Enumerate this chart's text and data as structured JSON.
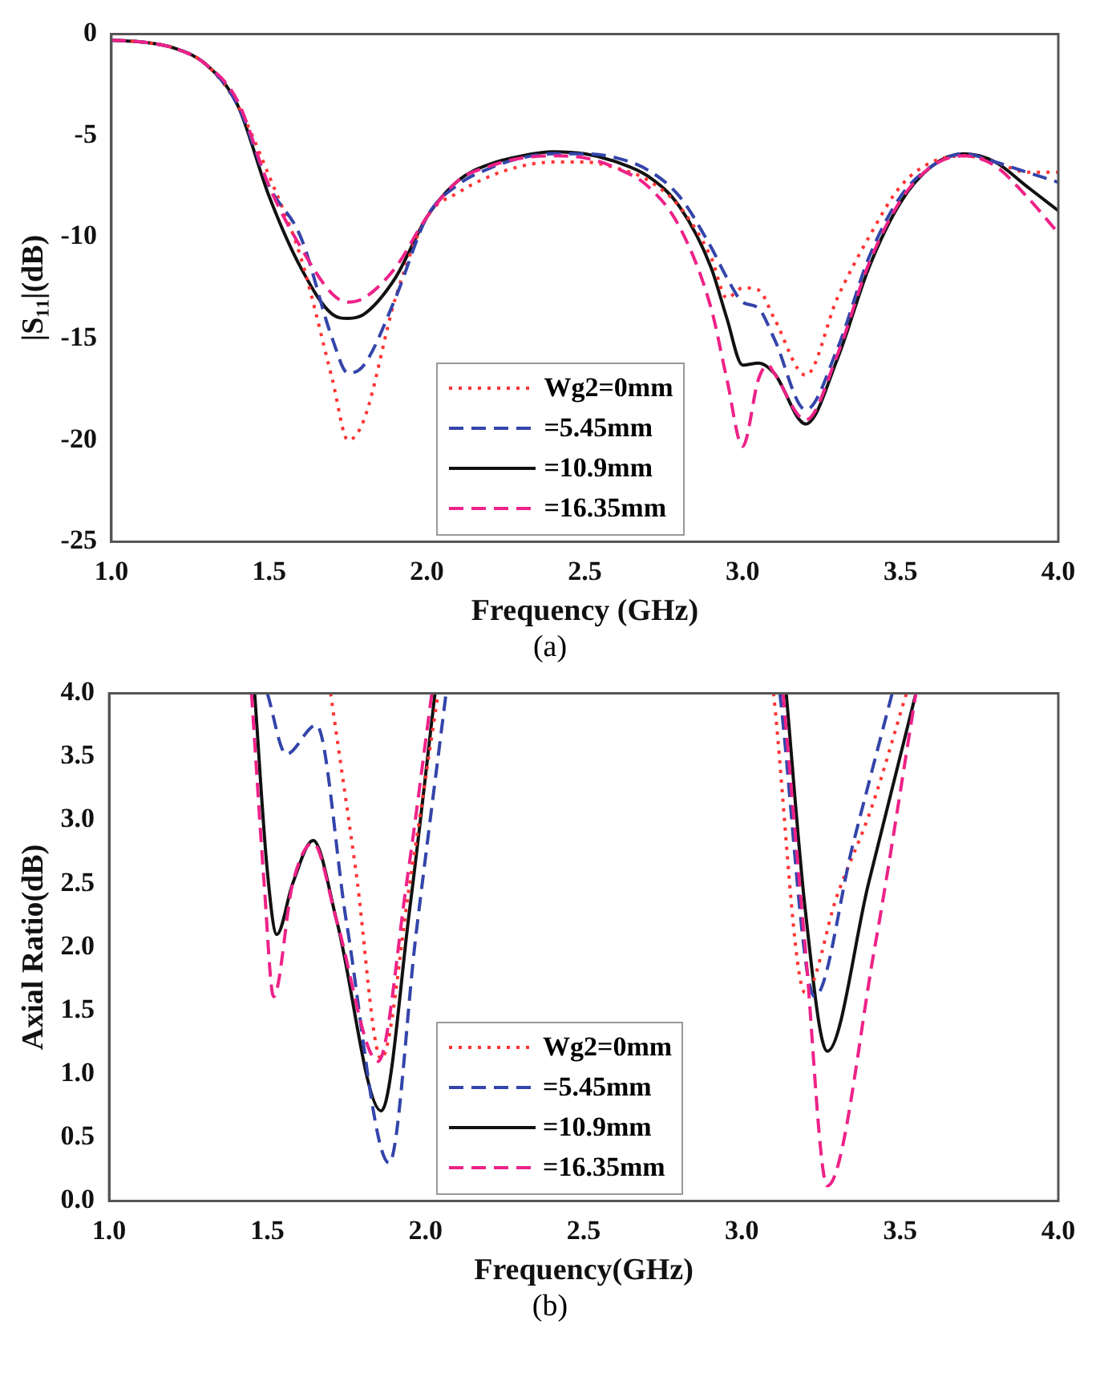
{
  "chart_data": [
    {
      "type": "line",
      "xlabel": "Frequency (GHz)",
      "ylabel": "|S₁₁|(dB)",
      "annotations": [
        "(a)"
      ],
      "legend": "bottom",
      "xlim": [
        1,
        4
      ],
      "xticks": [
        {
          "value": 1,
          "label": "1.0"
        },
        {
          "value": 1.5,
          "label": "1.5"
        },
        {
          "value": 2,
          "label": "2.0"
        },
        {
          "value": 2.5,
          "label": "2.5"
        },
        {
          "value": 3,
          "label": "3.0"
        },
        {
          "value": 3.5,
          "label": "3.5"
        },
        {
          "value": 4,
          "label": "4.0"
        }
      ],
      "ylim": [
        -25,
        0
      ],
      "yticks": [
        -25,
        -20,
        -15,
        -10,
        -5,
        0
      ],
      "series": [
        {
          "name": "Wg2=0mm",
          "color": "#ff3333",
          "line_style": "dotted",
          "x": [
            1.0,
            1.1,
            1.2,
            1.3,
            1.4,
            1.5,
            1.6,
            1.7,
            1.75,
            1.8,
            1.9,
            2.0,
            2.1,
            2.2,
            2.3,
            2.4,
            2.5,
            2.6,
            2.7,
            2.8,
            2.9,
            2.95,
            3.0,
            3.05,
            3.1,
            3.2,
            3.3,
            3.4,
            3.5,
            3.6,
            3.7,
            3.8,
            3.9,
            4.0
          ],
          "values": [
            -0.3,
            -0.4,
            -0.7,
            -1.5,
            -3.5,
            -7,
            -11,
            -17,
            -20,
            -19,
            -13,
            -9,
            -7.8,
            -7,
            -6.5,
            -6.3,
            -6.3,
            -6.6,
            -7.2,
            -8.5,
            -11,
            -13,
            -12.5,
            -12.6,
            -14,
            -16.8,
            -13,
            -10,
            -7.5,
            -6.3,
            -6,
            -6.3,
            -6.8,
            -6.8
          ]
        },
        {
          "name": "=5.45mm",
          "color": "#3344aa",
          "line_style": "dashed",
          "x": [
            1.0,
            1.1,
            1.2,
            1.3,
            1.4,
            1.5,
            1.6,
            1.7,
            1.75,
            1.8,
            1.9,
            2.0,
            2.1,
            2.2,
            2.3,
            2.4,
            2.5,
            2.6,
            2.7,
            2.8,
            2.9,
            2.95,
            3.0,
            3.05,
            3.1,
            3.2,
            3.3,
            3.4,
            3.5,
            3.6,
            3.7,
            3.8,
            3.9,
            4.0
          ],
          "values": [
            -0.3,
            -0.4,
            -0.7,
            -1.5,
            -3.5,
            -7.5,
            -10,
            -15,
            -16.7,
            -16.3,
            -13,
            -9,
            -7.4,
            -6.6,
            -6.1,
            -5.9,
            -5.9,
            -6.1,
            -6.7,
            -8,
            -10.5,
            -12,
            -13.2,
            -13.5,
            -15,
            -18.5,
            -15.5,
            -11,
            -8,
            -6.5,
            -5.9,
            -6.3,
            -6.8,
            -7.3
          ]
        },
        {
          "name": "=10.9mm",
          "color": "#111111",
          "line_style": "solid",
          "x": [
            1.0,
            1.1,
            1.2,
            1.3,
            1.4,
            1.5,
            1.6,
            1.7,
            1.75,
            1.8,
            1.9,
            2.0,
            2.1,
            2.2,
            2.3,
            2.4,
            2.5,
            2.6,
            2.7,
            2.8,
            2.9,
            2.95,
            3.0,
            3.05,
            3.1,
            3.2,
            3.3,
            3.4,
            3.5,
            3.6,
            3.7,
            3.8,
            3.9,
            4.0
          ],
          "values": [
            -0.3,
            -0.4,
            -0.7,
            -1.5,
            -3.5,
            -8,
            -11.5,
            -13.8,
            -14,
            -13.8,
            -12,
            -9,
            -7.2,
            -6.4,
            -6,
            -5.8,
            -5.9,
            -6.3,
            -7,
            -8.5,
            -11.5,
            -14,
            -16.3,
            -16.2,
            -16.7,
            -19.2,
            -16,
            -11.5,
            -8.3,
            -6.5,
            -5.9,
            -6.3,
            -7.5,
            -8.7
          ]
        },
        {
          "name": "=16.35mm",
          "color": "#ee2288",
          "line_style": "dashed",
          "x": [
            1.0,
            1.1,
            1.2,
            1.3,
            1.4,
            1.5,
            1.6,
            1.7,
            1.75,
            1.8,
            1.9,
            2.0,
            2.1,
            2.2,
            2.3,
            2.4,
            2.5,
            2.6,
            2.7,
            2.8,
            2.9,
            2.95,
            3.0,
            3.05,
            3.08,
            3.1,
            3.2,
            3.3,
            3.4,
            3.5,
            3.6,
            3.7,
            3.8,
            3.9,
            4.0
          ],
          "values": [
            -0.3,
            -0.4,
            -0.7,
            -1.5,
            -3.3,
            -7.5,
            -10.5,
            -12.8,
            -13.2,
            -13,
            -11.5,
            -9,
            -7.2,
            -6.5,
            -6.1,
            -6,
            -6.1,
            -6.6,
            -7.5,
            -9.5,
            -13.5,
            -17,
            -20.3,
            -17,
            -16.3,
            -16.7,
            -19,
            -15.8,
            -11.3,
            -8.2,
            -6.5,
            -6,
            -6.5,
            -8,
            -9.8
          ]
        }
      ]
    },
    {
      "type": "line",
      "xlabel": "Frequency(GHz)",
      "ylabel": "Axial Ratio(dB)",
      "annotations": [
        "(b)"
      ],
      "legend": "bottom",
      "xlim": [
        1,
        4
      ],
      "xticks": [
        {
          "value": 1,
          "label": "1.0"
        },
        {
          "value": 1.5,
          "label": "1.5"
        },
        {
          "value": 2,
          "label": "2.0"
        },
        {
          "value": 2.5,
          "label": "2.5"
        },
        {
          "value": 3,
          "label": "3.0"
        },
        {
          "value": 3.5,
          "label": "3.5"
        },
        {
          "value": 4,
          "label": "4.0"
        }
      ],
      "ylim": [
        0,
        4
      ],
      "yticks": [
        {
          "value": 0,
          "label": "0.0"
        },
        {
          "value": 0.5,
          "label": "0.5"
        },
        {
          "value": 1,
          "label": "1.0"
        },
        {
          "value": 1.5,
          "label": "1.5"
        },
        {
          "value": 2,
          "label": "2.0"
        },
        {
          "value": 2.5,
          "label": "2.5"
        },
        {
          "value": 3,
          "label": "3.0"
        },
        {
          "value": 3.5,
          "label": "3.5"
        },
        {
          "value": 4,
          "label": "4.0"
        }
      ],
      "series": [
        {
          "name": "Wg2=0mm",
          "color": "#ff3333",
          "line_style": "dotted",
          "x": [
            1.7,
            1.78,
            1.86,
            1.95,
            2.04,
            null,
            3.1,
            3.2,
            3.3,
            3.41,
            3.52
          ],
          "values": [
            4,
            2.6,
            1.12,
            2.5,
            4,
            null,
            4,
            1.64,
            2.4,
            3.1,
            4
          ]
        },
        {
          "name": "=5.45mm",
          "color": "#3344aa",
          "line_style": "dashed",
          "x": [
            1.5,
            1.56,
            1.655,
            1.75,
            1.885,
            1.97,
            2.065,
            null,
            3.12,
            3.23,
            3.35,
            3.475
          ],
          "values": [
            4,
            3.52,
            3.75,
            2.2,
            0.3,
            2.1,
            4,
            null,
            4,
            1.61,
            2.8,
            4
          ]
        },
        {
          "name": "=10.9mm",
          "color": "#111111",
          "line_style": "solid",
          "x": [
            1.46,
            1.5,
            1.53,
            1.58,
            1.645,
            1.72,
            1.86,
            1.95,
            2.03,
            null,
            3.14,
            3.2,
            3.27,
            3.4,
            3.55
          ],
          "values": [
            4,
            2.6,
            2.1,
            2.5,
            2.84,
            2.2,
            0.71,
            2.3,
            4,
            null,
            4,
            2.3,
            1.18,
            2.5,
            4
          ]
        },
        {
          "name": "=16.35mm",
          "color": "#ee2288",
          "line_style": "dashed",
          "x": [
            1.45,
            1.49,
            1.52,
            1.58,
            1.645,
            1.72,
            1.85,
            1.94,
            2.02,
            null,
            3.13,
            3.2,
            3.27,
            3.42,
            3.55
          ],
          "values": [
            4,
            2.5,
            1.61,
            2.5,
            2.82,
            2.2,
            1.1,
            2.5,
            4,
            null,
            4,
            2,
            0.12,
            2,
            4
          ]
        }
      ]
    }
  ]
}
